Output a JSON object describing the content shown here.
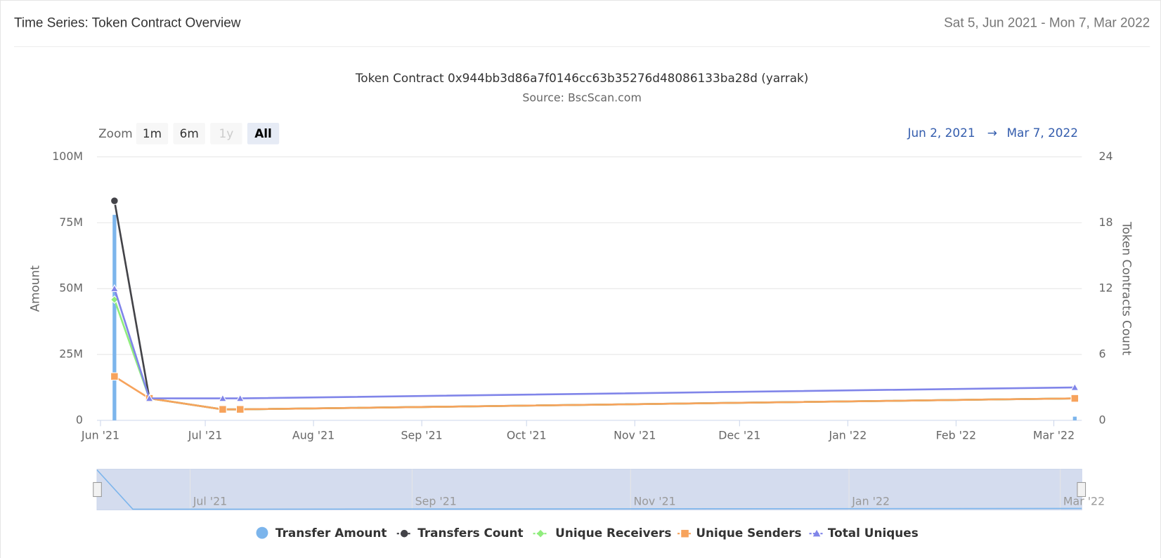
{
  "header": {
    "title": "Time Series: Token Contract Overview",
    "date_range": "Sat 5, Jun 2021 - Mon 7, Mar 2022"
  },
  "range_selector": {
    "zoom_label": "Zoom",
    "buttons": [
      "1m",
      "6m",
      "1y",
      "All"
    ],
    "selected": "All",
    "disabled": [
      "1y"
    ],
    "from": "Jun 2, 2021",
    "arrow": "→",
    "to": "Mar 7, 2022"
  },
  "chart_data": {
    "type": "line",
    "title": "Token Contract 0x944bb3d86a7f0146cc63b35276d48086133ba28d (yarrak)",
    "subtitle": "Source: BscScan.com",
    "y_label": "Amount",
    "y2_label": "Token Contracts Count",
    "x": [
      "2021-06-05",
      "2021-06-15",
      "2021-07-06",
      "2021-07-11",
      "2022-03-07"
    ],
    "xlim": [
      "2021-05-31",
      "2022-03-09"
    ],
    "xticks": [
      {
        "value": "2021-06-01",
        "label": "Jun '21"
      },
      {
        "value": "2021-07-01",
        "label": "Jul '21"
      },
      {
        "value": "2021-08-01",
        "label": "Aug '21"
      },
      {
        "value": "2021-09-01",
        "label": "Sep '21"
      },
      {
        "value": "2021-10-01",
        "label": "Oct '21"
      },
      {
        "value": "2021-11-01",
        "label": "Nov '21"
      },
      {
        "value": "2021-12-01",
        "label": "Dec '21"
      },
      {
        "value": "2022-01-01",
        "label": "Jan '22"
      },
      {
        "value": "2022-02-01",
        "label": "Feb '22"
      },
      {
        "value": "2022-03-01",
        "label": "Mar '22"
      }
    ],
    "ylim": [
      0,
      100000000
    ],
    "yticks": [
      0,
      {
        "value": 25000000,
        "label": "25M"
      },
      {
        "value": 50000000,
        "label": "50M"
      },
      {
        "value": 75000000,
        "label": "75M"
      },
      {
        "value": 100000000,
        "label": "100M"
      }
    ],
    "y2lim": [
      0,
      24
    ],
    "y2ticks": [
      0,
      6,
      12,
      18,
      24
    ],
    "grid": true,
    "series": [
      {
        "name": "Transfer Amount",
        "type": "column",
        "marker": "circle",
        "color": "#7cb5ec",
        "values": [
          78000000,
          0,
          0,
          0,
          1400000
        ]
      },
      {
        "name": "Transfers Count",
        "axis": "y2",
        "marker": "circle",
        "color": "#434348",
        "values": [
          20,
          2,
          1,
          1,
          2
        ]
      },
      {
        "name": "Unique Receivers",
        "axis": "y2",
        "marker": "diamond",
        "color": "#90ed7d",
        "values": [
          11,
          2,
          1,
          1,
          2
        ]
      },
      {
        "name": "Unique Senders",
        "axis": "y2",
        "marker": "square",
        "color": "#f7a35c",
        "values": [
          4,
          2,
          1,
          1,
          2
        ]
      },
      {
        "name": "Total Uniques",
        "axis": "y2",
        "marker": "triangle",
        "color": "#8085e9",
        "values": [
          12,
          2,
          2,
          2,
          3
        ]
      }
    ],
    "navigator": {
      "xlim": [
        "2021-06-05",
        "2022-03-07"
      ],
      "xticks": [
        {
          "value": "2021-07-01",
          "label": "Jul '21"
        },
        {
          "value": "2021-09-01",
          "label": "Sep '21"
        },
        {
          "value": "2021-11-01",
          "label": "Nov '21"
        },
        {
          "value": "2022-01-01",
          "label": "Jan '22"
        },
        {
          "value": "2022-03-01",
          "label": "Mar '22"
        }
      ]
    }
  }
}
